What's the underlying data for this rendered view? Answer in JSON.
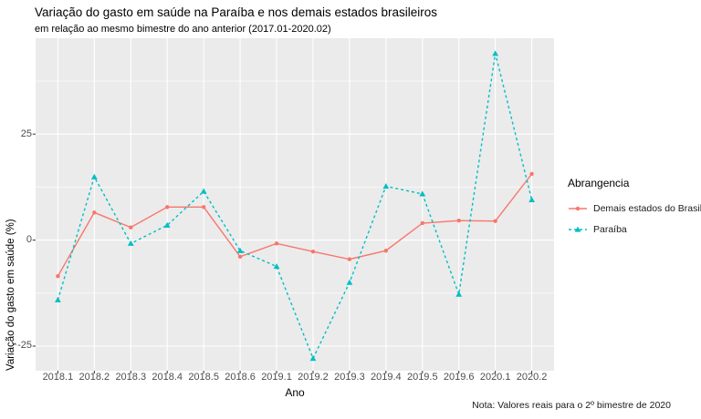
{
  "chart": {
    "title": "Variação do gasto em saúde na Paraíba e nos demais estados brasileiros",
    "subtitle": "em relação ao mesmo bimestre do ano anterior (2017.01-2020.02)",
    "caption": "Nota: Valores reais para o 2º bimestre de 2020",
    "xlabel": "Ano",
    "ylabel": "Variação do gasto em saúde (%)"
  },
  "legend": {
    "title": "Abrangencia",
    "position": "right",
    "items": [
      {
        "label": "Demais estados do Brasil",
        "color": "#F8766D",
        "linetype": "solid",
        "marker": "circle"
      },
      {
        "label": "Paraíba",
        "color": "#00BFC4",
        "linetype": "dashed",
        "marker": "triangle"
      }
    ]
  },
  "chart_data": {
    "type": "line",
    "title": "Variação do gasto em saúde na Paraíba e nos demais estados brasileiros",
    "subtitle": "em relação ao mesmo bimestre do ano anterior (2017.01-2020.02)",
    "xlabel": "Ano",
    "ylabel": "Variação do gasto em saúde (%)",
    "categories": [
      "2018.1",
      "2018.2",
      "2018.3",
      "2018.4",
      "2018.5",
      "2018.6",
      "2019.1",
      "2019.2",
      "2019.3",
      "2019.4",
      "2019.5",
      "2019.6",
      "2020.1",
      "2020.2"
    ],
    "series": [
      {
        "name": "Demais estados do Brasil",
        "color": "#F8766D",
        "linetype": "solid",
        "marker": "circle",
        "values": [
          -8.5,
          6.5,
          3.0,
          7.8,
          7.8,
          -3.9,
          -0.8,
          -2.7,
          -4.5,
          -2.5,
          4.0,
          4.6,
          4.5,
          15.6
        ]
      },
      {
        "name": "Paraíba",
        "color": "#00BFC4",
        "linetype": "dashed",
        "marker": "triangle",
        "values": [
          -14.1,
          14.9,
          -0.8,
          3.5,
          11.5,
          -2.5,
          -6.2,
          -27.9,
          -10.0,
          12.7,
          10.9,
          -12.8,
          44.0,
          9.5
        ]
      }
    ],
    "yticks": [
      25,
      0,
      -25
    ],
    "minor_yticks": [
      37.5,
      12.5,
      -12.5
    ],
    "ylim": [
      -30.8,
      47.6
    ],
    "grid": "white major+minor horizontal, major vertical on gray panel",
    "legend_position": "right",
    "panel_background": "#EBEBEB",
    "grid_color": "#FFFFFF",
    "axis_text_color": "#4D4D4D",
    "tick_mark_color": "#333333"
  }
}
